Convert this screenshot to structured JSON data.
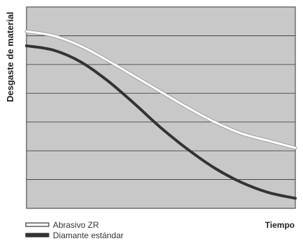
{
  "chart_data": {
    "type": "line",
    "title": "",
    "ylabel": "Desgaste de material",
    "xlabel": "Tiempo",
    "xlim": [
      0,
      1
    ],
    "ylim": [
      0,
      7
    ],
    "grid": true,
    "background": "#c8c8c8",
    "legend_position": "bottom-left",
    "series": [
      {
        "name": "Abrasivo ZR",
        "color": "#ffffff",
        "outline": "#333333",
        "points": [
          [
            0.0,
            6.15
          ],
          [
            0.1,
            6.0
          ],
          [
            0.2,
            5.65
          ],
          [
            0.3,
            5.15
          ],
          [
            0.4,
            4.6
          ],
          [
            0.5,
            4.05
          ],
          [
            0.6,
            3.5
          ],
          [
            0.7,
            3.0
          ],
          [
            0.8,
            2.6
          ],
          [
            0.9,
            2.35
          ],
          [
            1.0,
            2.1
          ]
        ]
      },
      {
        "name": "Diamante estándar",
        "color": "#333333",
        "outline": "#333333",
        "points": [
          [
            0.0,
            5.65
          ],
          [
            0.1,
            5.5
          ],
          [
            0.2,
            5.1
          ],
          [
            0.3,
            4.45
          ],
          [
            0.4,
            3.65
          ],
          [
            0.5,
            2.8
          ],
          [
            0.6,
            2.05
          ],
          [
            0.7,
            1.4
          ],
          [
            0.8,
            0.9
          ],
          [
            0.9,
            0.55
          ],
          [
            1.0,
            0.35
          ]
        ]
      }
    ]
  }
}
